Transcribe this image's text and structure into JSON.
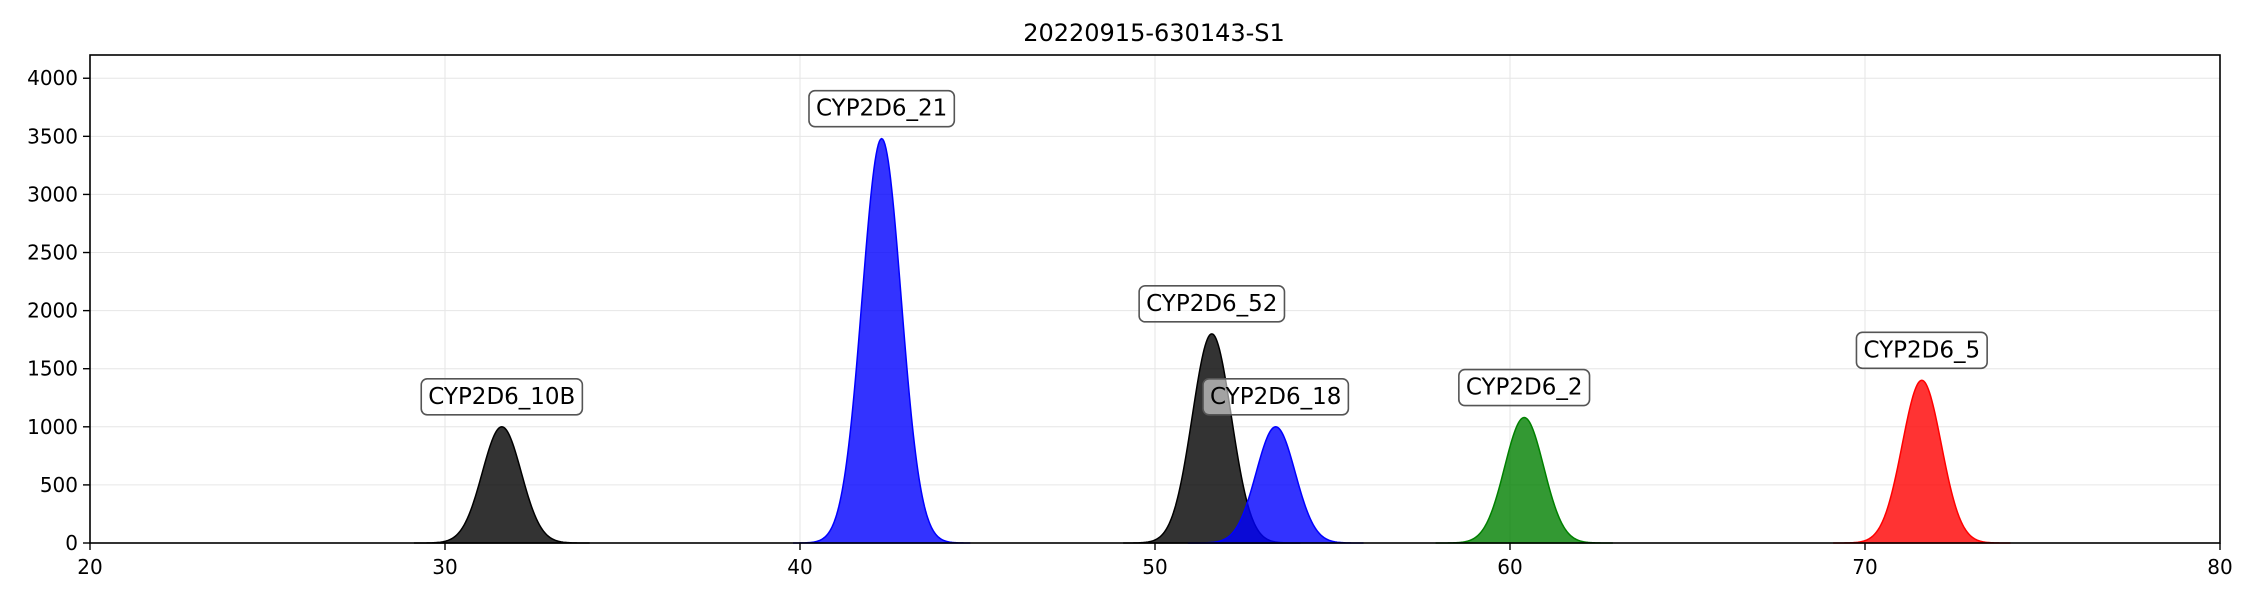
{
  "chart_data": {
    "type": "area",
    "title": "20220915-630143-S1",
    "xlabel": "",
    "ylabel": "",
    "xlim": [
      20,
      80
    ],
    "ylim": [
      0,
      4200
    ],
    "x_ticks": [
      20,
      30,
      40,
      50,
      60,
      70,
      80
    ],
    "y_ticks": [
      0,
      500,
      1000,
      1500,
      2000,
      2500,
      3000,
      3500,
      4000
    ],
    "grid": true,
    "legend": "none",
    "peaks": [
      {
        "label": "CYP2D6_10B",
        "center": 31.6,
        "height": 1000,
        "sigma": 0.55,
        "color": "#000000"
      },
      {
        "label": "CYP2D6_21",
        "center": 42.3,
        "height": 3480,
        "sigma": 0.55,
        "color": "#0000ff"
      },
      {
        "label": "CYP2D6_52",
        "center": 51.6,
        "height": 1800,
        "sigma": 0.55,
        "color": "#000000"
      },
      {
        "label": "CYP2D6_18",
        "center": 53.4,
        "height": 1000,
        "sigma": 0.55,
        "color": "#0000ff"
      },
      {
        "label": "CYP2D6_2",
        "center": 60.4,
        "height": 1080,
        "sigma": 0.55,
        "color": "#008000"
      },
      {
        "label": "CYP2D6_5",
        "center": 71.6,
        "height": 1400,
        "sigma": 0.55,
        "color": "#ff0000"
      }
    ]
  }
}
